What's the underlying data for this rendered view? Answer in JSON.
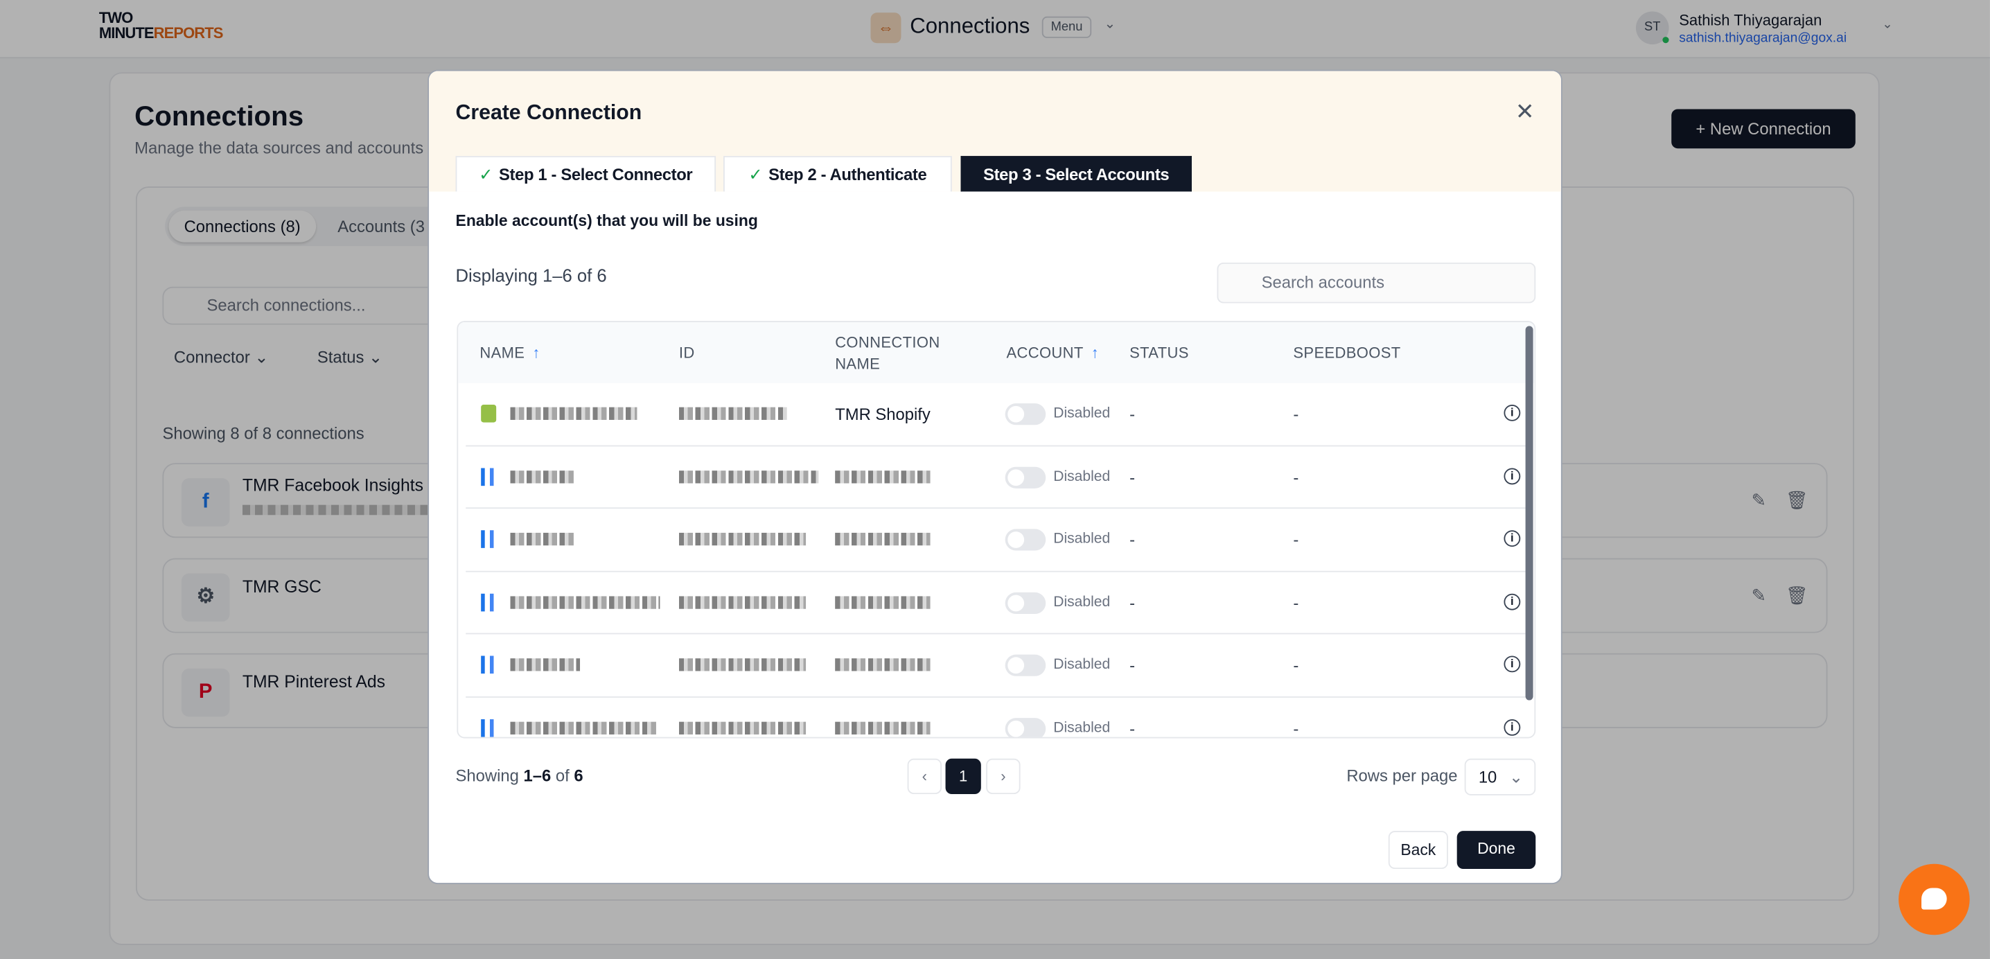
{
  "header": {
    "logo_top": "TWO",
    "logo_bottom_a": "MINUTE",
    "logo_bottom_b": "REPORTS",
    "title": "Connections",
    "menu_label": "Menu",
    "user_initials": "ST",
    "user_name": "Sathish Thiyagarajan",
    "user_email": "sathish.thiyagarajan@gox.ai"
  },
  "page": {
    "title": "Connections",
    "subtitle": "Manage the data sources and accounts",
    "new_button": "+ New Connection",
    "tabs": [
      "Connections (8)",
      "Accounts (3"
    ],
    "search_placeholder": "Search connections...",
    "filters": [
      "Connector",
      "Status"
    ],
    "showing": "Showing 8 of 8 connections",
    "connections": [
      {
        "name": "TMR Facebook Insights",
        "icon": "facebook-icon",
        "color": "#1877f2"
      },
      {
        "name": "TMR GSC",
        "icon": "google-search-console-icon",
        "color": "#4b5563"
      },
      {
        "name": "TMR Pinterest Ads",
        "icon": "pinterest-icon",
        "color": "#e60023"
      }
    ]
  },
  "modal": {
    "title": "Create Connection",
    "steps": [
      {
        "label": "Step 1 - Select Connector",
        "done": true
      },
      {
        "label": "Step 2 - Authenticate",
        "done": true
      },
      {
        "label": "Step 3 - Select Accounts",
        "active": true
      }
    ],
    "instruction": "Enable account(s) that you will be using",
    "displaying": "Displaying 1–6 of 6",
    "search_placeholder": "Search accounts",
    "columns": [
      "NAME",
      "ID",
      "CONNECTION NAME",
      "ACCOUNT",
      "STATUS",
      "SPEEDBOOST"
    ],
    "rows": [
      {
        "icon": "shopify-icon",
        "connection_name": "TMR Shopify",
        "enabled": false,
        "toggle_label": "Disabled",
        "status": "-",
        "speedboost": "-"
      },
      {
        "icon": "google-ads-icon",
        "connection_name": "",
        "enabled": false,
        "toggle_label": "Disabled",
        "status": "-",
        "speedboost": "-"
      },
      {
        "icon": "google-ads-icon",
        "connection_name": "",
        "enabled": false,
        "toggle_label": "Disabled",
        "status": "-",
        "speedboost": "-"
      },
      {
        "icon": "google-analytics-icon",
        "connection_name": "",
        "enabled": false,
        "toggle_label": "Disabled",
        "status": "-",
        "speedboost": "-"
      },
      {
        "icon": "google-analytics-icon",
        "connection_name": "",
        "enabled": false,
        "toggle_label": "Disabled",
        "status": "-",
        "speedboost": "-"
      },
      {
        "icon": "google-analytics-icon",
        "connection_name": "",
        "enabled": false,
        "toggle_label": "Disabled",
        "status": "-",
        "speedboost": "-"
      }
    ],
    "footer_showing_prefix": "Showing ",
    "footer_range": "1–6",
    "footer_of": " of ",
    "footer_total": "6",
    "current_page": "1",
    "rows_per_page_label": "Rows per page",
    "rows_per_page": "10",
    "back": "Back",
    "done": "Done"
  },
  "colors": {
    "accent": "#111827",
    "brand_orange": "#f97316",
    "modal_header": "#fdf7ec"
  }
}
